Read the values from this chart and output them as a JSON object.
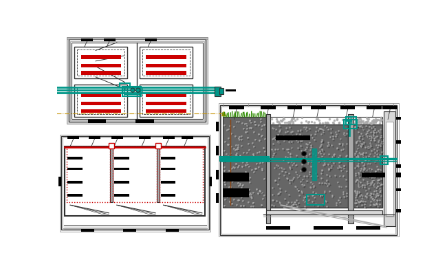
{
  "bg_color": "#ffffff",
  "line_color": "#909090",
  "dark_line": "#303030",
  "teal_color": "#009688",
  "red_color": "#cc0000",
  "green_color": "#2d8a00",
  "orange_dash": "#c8960a",
  "black": "#000000",
  "white": "#ffffff",
  "light_gray": "#d8d8d8",
  "med_gray": "#aaaaaa",
  "dark_gray": "#666666",
  "stone_color": "#888888",
  "stone_light": "#b0b0b0"
}
